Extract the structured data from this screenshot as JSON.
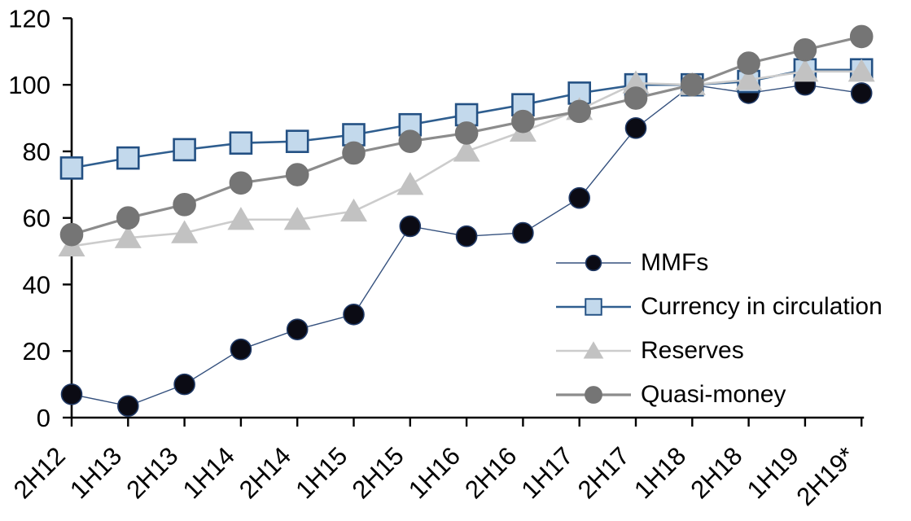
{
  "chart_data": {
    "type": "line",
    "title": "",
    "xlabel": "",
    "ylabel": "",
    "grid": false,
    "legend_position": "inside-right",
    "ylim": [
      0,
      120
    ],
    "y_ticks": [
      0,
      20,
      40,
      60,
      80,
      100,
      120
    ],
    "categories": [
      "2H12",
      "1H13",
      "2H13",
      "1H14",
      "2H14",
      "1H15",
      "2H15",
      "1H16",
      "2H16",
      "1H17",
      "2H17",
      "1H18",
      "2H18",
      "1H19",
      "2H19*"
    ],
    "series": [
      {
        "name": "MMFs",
        "marker": "circle",
        "marker_size": 25,
        "fill": "#0b0b14",
        "stroke": "#1f3864",
        "line_color": "#35517e",
        "line_width": 1.4,
        "values": [
          7,
          3.5,
          10,
          20.5,
          26.5,
          31,
          57.5,
          54.5,
          55.5,
          66,
          87,
          100,
          97.5,
          100,
          97.5
        ]
      },
      {
        "name": "Currency in circulation",
        "marker": "square",
        "marker_size": 26,
        "fill": "#c3d9ec",
        "stroke": "#235083",
        "line_color": "#2f5e8f",
        "line_width": 2.6,
        "values": [
          75,
          78,
          80.5,
          82.5,
          83,
          85,
          88,
          91,
          94,
          97.5,
          100,
          100,
          101,
          104.5,
          104.5
        ]
      },
      {
        "name": "Reserves",
        "marker": "triangle",
        "marker_size": 30,
        "fill": "#c2c2c2",
        "stroke": "#c2c2c2",
        "line_color": "#cccccc",
        "line_width": 2.6,
        "values": [
          51.5,
          54,
          55.5,
          59.5,
          59.5,
          62,
          70,
          80,
          86,
          92.5,
          100.5,
          100,
          101.5,
          104,
          104
        ]
      },
      {
        "name": "Quasi-money",
        "marker": "circle",
        "marker_size": 27,
        "fill": "#757575",
        "stroke": "#757575",
        "line_color": "#8c8c8c",
        "line_width": 3.2,
        "values": [
          55,
          60,
          64,
          70.5,
          73,
          79.5,
          83,
          85.5,
          89,
          92,
          96,
          100,
          106.5,
          110.5,
          114.5
        ]
      }
    ],
    "axis_color": "#000000",
    "background_color": "#ffffff"
  }
}
